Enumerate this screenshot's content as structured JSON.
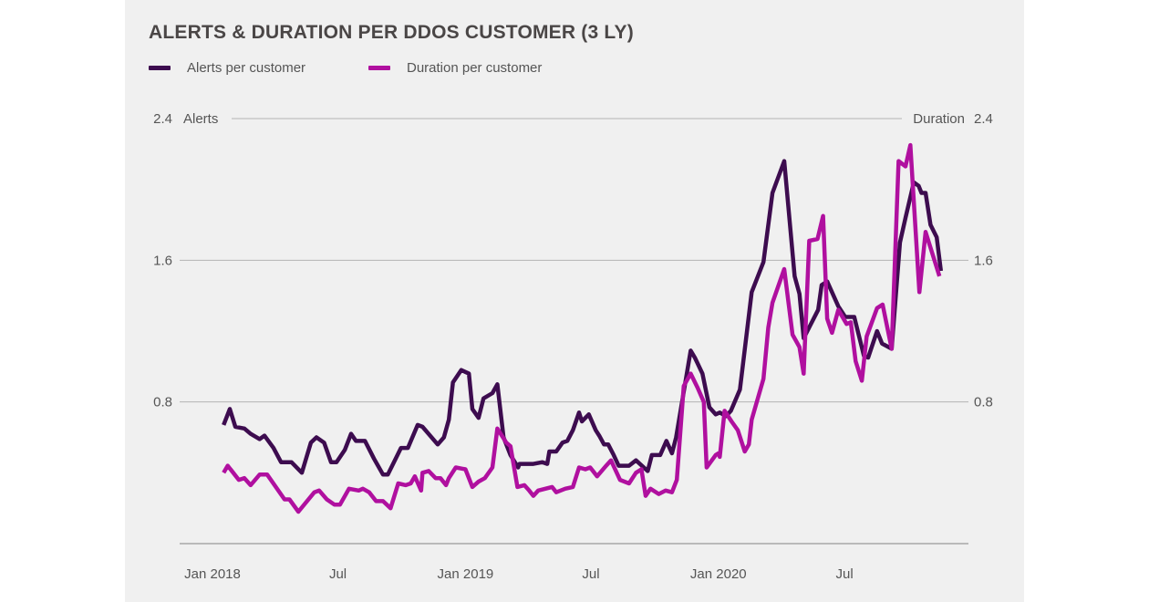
{
  "chart_data": {
    "type": "line",
    "title": "ALERTS & DURATION PER DDOS CUSTOMER (3 LY)",
    "ylabel_left": "Alerts",
    "ylabel_right": "Duration",
    "ylim": [
      0,
      2.4
    ],
    "yticks": [
      0.8,
      1.6,
      2.4
    ],
    "ytick_labels": [
      "0.8",
      "1.6",
      "2.4"
    ],
    "xticks": [
      {
        "date": "2018-01-01",
        "label": "Jan 2018"
      },
      {
        "date": "2018-07-01",
        "label": "Jul"
      },
      {
        "date": "2019-01-01",
        "label": "Jan 2019"
      },
      {
        "date": "2019-07-01",
        "label": "Jul"
      },
      {
        "date": "2020-01-01",
        "label": "Jan 2020"
      },
      {
        "date": "2020-07-01",
        "label": "Jul"
      }
    ],
    "grid": true,
    "legend_position": "top-left",
    "series": [
      {
        "name": "Alerts per customer",
        "color": "#3d0c4f",
        "axis": "left",
        "points": [
          [
            "2018-01-17",
            0.67
          ],
          [
            "2018-01-26",
            0.76
          ],
          [
            "2018-02-03",
            0.66
          ],
          [
            "2018-02-16",
            0.65
          ],
          [
            "2018-02-25",
            0.62
          ],
          [
            "2018-03-10",
            0.59
          ],
          [
            "2018-03-17",
            0.61
          ],
          [
            "2018-03-30",
            0.54
          ],
          [
            "2018-04-10",
            0.46
          ],
          [
            "2018-04-25",
            0.46
          ],
          [
            "2018-05-10",
            0.4
          ],
          [
            "2018-05-23",
            0.57
          ],
          [
            "2018-05-31",
            0.6
          ],
          [
            "2018-06-11",
            0.57
          ],
          [
            "2018-06-21",
            0.46
          ],
          [
            "2018-06-29",
            0.46
          ],
          [
            "2018-07-11",
            0.53
          ],
          [
            "2018-07-20",
            0.62
          ],
          [
            "2018-07-27",
            0.58
          ],
          [
            "2018-08-09",
            0.58
          ],
          [
            "2018-08-22",
            0.48
          ],
          [
            "2018-09-04",
            0.39
          ],
          [
            "2018-09-11",
            0.39
          ],
          [
            "2018-09-30",
            0.54
          ],
          [
            "2018-10-10",
            0.54
          ],
          [
            "2018-10-24",
            0.67
          ],
          [
            "2018-10-31",
            0.66
          ],
          [
            "2018-11-22",
            0.56
          ],
          [
            "2018-12-01",
            0.6
          ],
          [
            "2018-12-08",
            0.7
          ],
          [
            "2018-12-14",
            0.91
          ],
          [
            "2018-12-26",
            0.98
          ],
          [
            "2019-01-06",
            0.96
          ],
          [
            "2019-01-11",
            0.76
          ],
          [
            "2019-01-20",
            0.71
          ],
          [
            "2019-01-27",
            0.82
          ],
          [
            "2019-02-09",
            0.85
          ],
          [
            "2019-02-16",
            0.9
          ],
          [
            "2019-02-25",
            0.6
          ],
          [
            "2019-03-07",
            0.5
          ],
          [
            "2019-03-18",
            0.43
          ],
          [
            "2019-03-20",
            0.45
          ],
          [
            "2019-04-09",
            0.45
          ],
          [
            "2019-04-22",
            0.46
          ],
          [
            "2019-04-29",
            0.45
          ],
          [
            "2019-05-02",
            0.52
          ],
          [
            "2019-05-12",
            0.52
          ],
          [
            "2019-05-21",
            0.57
          ],
          [
            "2019-05-28",
            0.58
          ],
          [
            "2019-06-05",
            0.64
          ],
          [
            "2019-06-14",
            0.74
          ],
          [
            "2019-06-18",
            0.69
          ],
          [
            "2019-06-28",
            0.73
          ],
          [
            "2019-07-08",
            0.64
          ],
          [
            "2019-07-13",
            0.61
          ],
          [
            "2019-07-20",
            0.56
          ],
          [
            "2019-07-26",
            0.56
          ],
          [
            "2019-08-03",
            0.5
          ],
          [
            "2019-08-10",
            0.44
          ],
          [
            "2019-08-25",
            0.44
          ],
          [
            "2019-09-04",
            0.47
          ],
          [
            "2019-09-21",
            0.41
          ],
          [
            "2019-09-27",
            0.5
          ],
          [
            "2019-10-09",
            0.5
          ],
          [
            "2019-10-18",
            0.58
          ],
          [
            "2019-10-26",
            0.51
          ],
          [
            "2019-11-01",
            0.6
          ],
          [
            "2019-11-22",
            1.09
          ],
          [
            "2019-11-28",
            1.05
          ],
          [
            "2019-12-09",
            0.96
          ],
          [
            "2019-12-19",
            0.77
          ],
          [
            "2019-12-28",
            0.73
          ],
          [
            "2020-01-03",
            0.74
          ],
          [
            "2020-01-12",
            0.72
          ],
          [
            "2020-01-19",
            0.75
          ],
          [
            "2020-02-01",
            0.87
          ],
          [
            "2020-02-18",
            1.42
          ],
          [
            "2020-03-06",
            1.59
          ],
          [
            "2020-03-19",
            1.98
          ],
          [
            "2020-04-05",
            2.16
          ],
          [
            "2020-04-20",
            1.51
          ],
          [
            "2020-04-27",
            1.41
          ],
          [
            "2020-05-03",
            1.16
          ],
          [
            "2020-05-24",
            1.32
          ],
          [
            "2020-05-29",
            1.46
          ],
          [
            "2020-06-06",
            1.48
          ],
          [
            "2020-06-22",
            1.34
          ],
          [
            "2020-07-02",
            1.28
          ],
          [
            "2020-07-15",
            1.28
          ],
          [
            "2020-07-29",
            1.06
          ],
          [
            "2020-08-04",
            1.05
          ],
          [
            "2020-08-17",
            1.2
          ],
          [
            "2020-08-24",
            1.13
          ],
          [
            "2020-09-07",
            1.1
          ],
          [
            "2020-09-19",
            1.7
          ],
          [
            "2020-09-27",
            1.84
          ],
          [
            "2020-10-09",
            2.04
          ],
          [
            "2020-10-16",
            2.02
          ],
          [
            "2020-10-20",
            1.98
          ],
          [
            "2020-10-26",
            1.98
          ],
          [
            "2020-11-02",
            1.8
          ],
          [
            "2020-11-11",
            1.73
          ],
          [
            "2020-11-17",
            1.54
          ]
        ]
      },
      {
        "name": "Duration per customer",
        "color": "#b0109f",
        "axis": "right",
        "points": [
          [
            "2018-01-17",
            0.4
          ],
          [
            "2018-01-23",
            0.44
          ],
          [
            "2018-02-08",
            0.36
          ],
          [
            "2018-02-16",
            0.37
          ],
          [
            "2018-02-25",
            0.33
          ],
          [
            "2018-03-10",
            0.39
          ],
          [
            "2018-03-21",
            0.39
          ],
          [
            "2018-04-15",
            0.25
          ],
          [
            "2018-04-22",
            0.25
          ],
          [
            "2018-05-05",
            0.18
          ],
          [
            "2018-05-28",
            0.29
          ],
          [
            "2018-06-04",
            0.3
          ],
          [
            "2018-06-15",
            0.25
          ],
          [
            "2018-06-26",
            0.22
          ],
          [
            "2018-07-04",
            0.22
          ],
          [
            "2018-07-17",
            0.31
          ],
          [
            "2018-07-31",
            0.3
          ],
          [
            "2018-08-06",
            0.31
          ],
          [
            "2018-08-15",
            0.29
          ],
          [
            "2018-08-25",
            0.24
          ],
          [
            "2018-09-04",
            0.24
          ],
          [
            "2018-09-15",
            0.2
          ],
          [
            "2018-09-26",
            0.34
          ],
          [
            "2018-10-07",
            0.33
          ],
          [
            "2018-10-14",
            0.34
          ],
          [
            "2018-10-20",
            0.38
          ],
          [
            "2018-10-29",
            0.3
          ],
          [
            "2018-10-31",
            0.4
          ],
          [
            "2018-11-09",
            0.41
          ],
          [
            "2018-11-19",
            0.37
          ],
          [
            "2018-11-26",
            0.37
          ],
          [
            "2018-12-04",
            0.33
          ],
          [
            "2018-12-08",
            0.37
          ],
          [
            "2018-12-18",
            0.43
          ],
          [
            "2019-01-01",
            0.42
          ],
          [
            "2019-01-11",
            0.32
          ],
          [
            "2019-01-20",
            0.35
          ],
          [
            "2019-01-29",
            0.37
          ],
          [
            "2019-02-09",
            0.43
          ],
          [
            "2019-02-16",
            0.65
          ],
          [
            "2019-03-01",
            0.57
          ],
          [
            "2019-03-07",
            0.55
          ],
          [
            "2019-03-17",
            0.32
          ],
          [
            "2019-03-27",
            0.33
          ],
          [
            "2019-04-03",
            0.3
          ],
          [
            "2019-04-09",
            0.27
          ],
          [
            "2019-04-16",
            0.3
          ],
          [
            "2019-05-06",
            0.32
          ],
          [
            "2019-05-12",
            0.29
          ],
          [
            "2019-05-25",
            0.31
          ],
          [
            "2019-06-05",
            0.32
          ],
          [
            "2019-06-14",
            0.43
          ],
          [
            "2019-06-23",
            0.42
          ],
          [
            "2019-06-30",
            0.43
          ],
          [
            "2019-07-10",
            0.38
          ],
          [
            "2019-07-23",
            0.44
          ],
          [
            "2019-07-30",
            0.47
          ],
          [
            "2019-08-12",
            0.36
          ],
          [
            "2019-08-25",
            0.34
          ],
          [
            "2019-09-04",
            0.4
          ],
          [
            "2019-09-12",
            0.42
          ],
          [
            "2019-09-18",
            0.27
          ],
          [
            "2019-09-25",
            0.31
          ],
          [
            "2019-10-07",
            0.28
          ],
          [
            "2019-10-17",
            0.3
          ],
          [
            "2019-10-26",
            0.29
          ],
          [
            "2019-11-02",
            0.36
          ],
          [
            "2019-11-12",
            0.89
          ],
          [
            "2019-11-22",
            0.96
          ],
          [
            "2019-12-02",
            0.88
          ],
          [
            "2019-12-11",
            0.8
          ],
          [
            "2019-12-15",
            0.43
          ],
          [
            "2019-12-28",
            0.5
          ],
          [
            "2020-01-01",
            0.51
          ],
          [
            "2020-01-03",
            0.49
          ],
          [
            "2020-01-10",
            0.75
          ],
          [
            "2020-01-20",
            0.69
          ],
          [
            "2020-01-29",
            0.64
          ],
          [
            "2020-02-08",
            0.52
          ],
          [
            "2020-02-14",
            0.56
          ],
          [
            "2020-02-18",
            0.7
          ],
          [
            "2020-03-06",
            0.93
          ],
          [
            "2020-03-13",
            1.22
          ],
          [
            "2020-03-19",
            1.36
          ],
          [
            "2020-04-05",
            1.55
          ],
          [
            "2020-04-17",
            1.18
          ],
          [
            "2020-04-27",
            1.11
          ],
          [
            "2020-05-03",
            0.96
          ],
          [
            "2020-05-11",
            1.71
          ],
          [
            "2020-05-23",
            1.72
          ],
          [
            "2020-05-31",
            1.85
          ],
          [
            "2020-06-06",
            1.27
          ],
          [
            "2020-06-13",
            1.19
          ],
          [
            "2020-06-22",
            1.32
          ],
          [
            "2020-07-04",
            1.24
          ],
          [
            "2020-07-10",
            1.25
          ],
          [
            "2020-07-17",
            1.03
          ],
          [
            "2020-07-26",
            0.92
          ],
          [
            "2020-08-02",
            1.17
          ],
          [
            "2020-08-17",
            1.33
          ],
          [
            "2020-08-25",
            1.35
          ],
          [
            "2020-09-07",
            1.1
          ],
          [
            "2020-09-17",
            2.16
          ],
          [
            "2020-09-27",
            2.13
          ],
          [
            "2020-10-04",
            2.25
          ],
          [
            "2020-10-17",
            1.42
          ],
          [
            "2020-10-26",
            1.76
          ],
          [
            "2020-11-15",
            1.51
          ]
        ]
      }
    ]
  }
}
